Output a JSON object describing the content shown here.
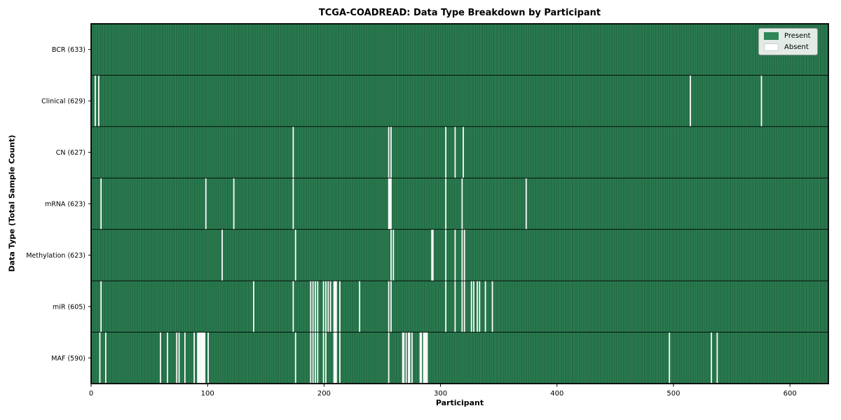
{
  "title": "TCGA-COADREAD: Data Type Breakdown by Participant",
  "chart_data": {
    "type": "heatmap",
    "title": "TCGA-COADREAD: Data Type Breakdown by Participant",
    "xlabel": "Participant",
    "ylabel": "Data Type (Total Sample Count)",
    "x_ticks": [
      0,
      100,
      200,
      300,
      400,
      500,
      600
    ],
    "x_max": 633,
    "total_participants": 633,
    "grid": false,
    "legend_position": "upper right",
    "legend": [
      {
        "label": "Present",
        "color": "#2e8757"
      },
      {
        "label": "Absent",
        "color": "#ffffff"
      }
    ],
    "colors": {
      "present_fill": "#2e8757",
      "cell_edge": "rgba(8,30,18,0.5)",
      "absent_fill": "#ffffff",
      "frame": "#000000"
    },
    "rows": [
      {
        "label": "BCR (633)",
        "name": "BCR",
        "present_count": 633,
        "absent_indices": []
      },
      {
        "label": "Clinical (629)",
        "name": "Clinical",
        "present_count": 629,
        "absent_indices": [
          3,
          6,
          514,
          575
        ]
      },
      {
        "label": "CN (627)",
        "name": "CN",
        "present_count": 627,
        "absent_indices": [
          173,
          255,
          257,
          304,
          312,
          319
        ]
      },
      {
        "label": "mRNA (623)",
        "name": "mRNA",
        "present_count": 623,
        "absent_indices": [
          8,
          98,
          122,
          173,
          255,
          256,
          257,
          304,
          318,
          373
        ]
      },
      {
        "label": "Methylation (623)",
        "name": "Methylation",
        "present_count": 623,
        "absent_indices": [
          112,
          175,
          257,
          259,
          292,
          293,
          304,
          312,
          318,
          320
        ]
      },
      {
        "label": "miR (605)",
        "name": "miR",
        "present_count": 605,
        "absent_indices": [
          8,
          139,
          173,
          188,
          190,
          192,
          194,
          199,
          201,
          203,
          205,
          208,
          209,
          210,
          213,
          230,
          255,
          257,
          304,
          312,
          318,
          320,
          326,
          328,
          331,
          333,
          338,
          344
        ]
      },
      {
        "label": "MAF (590)",
        "name": "MAF",
        "present_count": 590,
        "absent_indices": [
          7,
          12,
          59,
          65,
          73,
          75,
          80,
          88,
          91,
          92,
          93,
          94,
          95,
          96,
          97,
          100,
          175,
          188,
          190,
          192,
          194,
          199,
          201,
          208,
          209,
          210,
          213,
          255,
          267,
          268,
          270,
          272,
          273,
          275,
          282,
          283,
          285,
          286,
          287,
          288,
          496,
          532,
          537
        ]
      }
    ]
  }
}
